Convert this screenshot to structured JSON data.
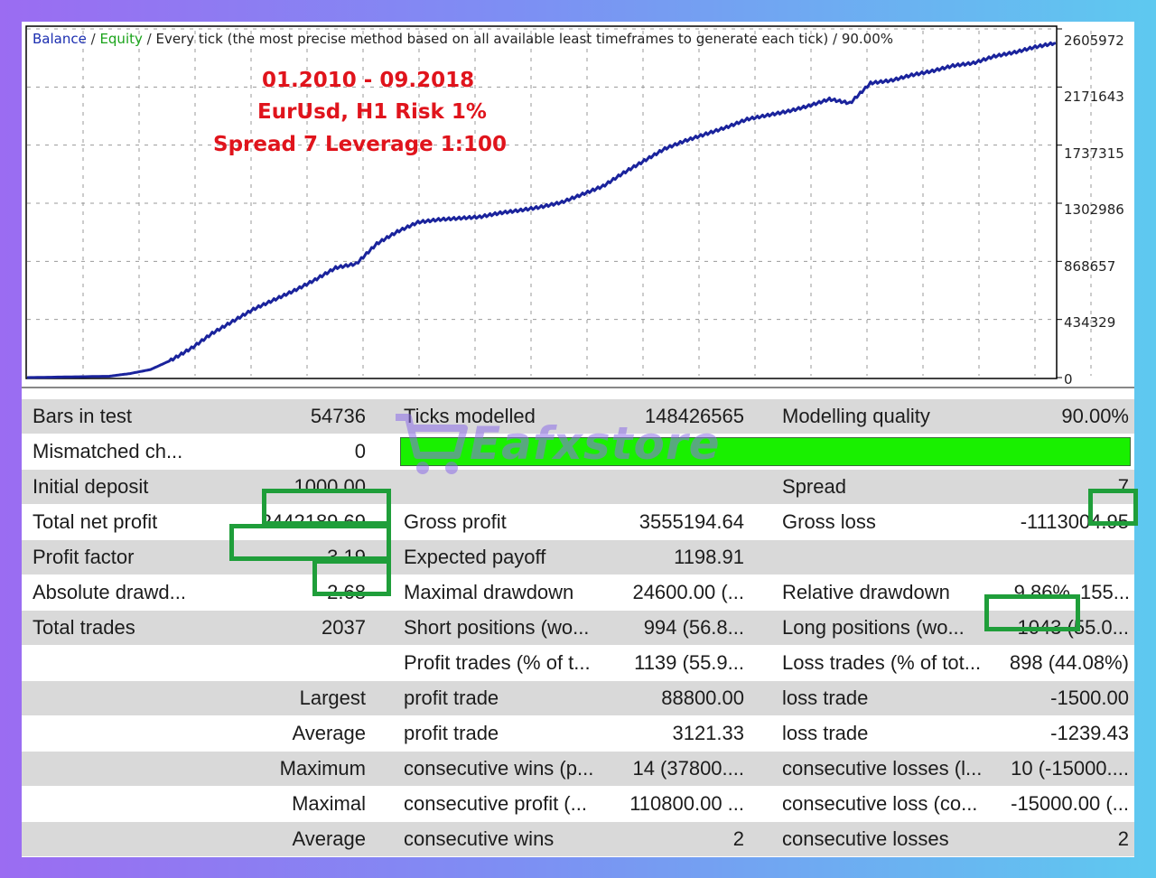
{
  "chart": {
    "legend": {
      "balance": "Balance",
      "equity": "Equity",
      "description": "Every tick (the most precise method based on all available least timeframes to generate each tick) / 90.00%"
    },
    "annotations": [
      "01.2010 - 09.2018",
      "EurUsd, H1  Risk 1%",
      "Spread 7    Leverage 1:100"
    ],
    "y_ticks": [
      "2605972",
      "2171643",
      "1737315",
      "1302986",
      "868657",
      "434329",
      "0"
    ],
    "colors": {
      "balance": "#1a239c",
      "equity": "#1aa31a",
      "annotation": "#e0141c",
      "highlight": "#1f9e3a",
      "quality_bar": "#19f000"
    }
  },
  "chart_data": {
    "type": "line",
    "title": "",
    "xlabel": "",
    "ylabel": "",
    "ylim": [
      0,
      2605972
    ],
    "x": [
      0,
      4,
      8,
      10,
      12,
      14,
      16,
      18,
      20,
      22,
      24,
      26,
      28,
      30,
      32,
      34,
      36,
      38,
      40,
      42,
      44,
      46,
      48,
      50,
      52,
      54,
      56,
      58,
      60,
      62,
      64,
      66,
      68,
      70,
      72,
      74,
      76,
      78,
      80,
      82,
      84,
      86,
      88,
      90,
      92,
      94,
      96,
      98,
      100
    ],
    "series": [
      {
        "name": "Balance",
        "values": [
          0,
          5000,
          10000,
          30000,
          60000,
          130000,
          220000,
          330000,
          420000,
          510000,
          580000,
          650000,
          730000,
          820000,
          850000,
          1000000,
          1090000,
          1160000,
          1180000,
          1190000,
          1200000,
          1230000,
          1250000,
          1275000,
          1310000,
          1370000,
          1430000,
          1530000,
          1620000,
          1710000,
          1770000,
          1820000,
          1870000,
          1930000,
          1960000,
          1990000,
          2030000,
          2080000,
          2050000,
          2200000,
          2220000,
          2260000,
          2290000,
          2330000,
          2350000,
          2400000,
          2430000,
          2470000,
          2500000
        ]
      }
    ]
  },
  "stats": {
    "rows": [
      {
        "c": [
          "Bars in test",
          "54736",
          "Ticks modelled",
          "148426565",
          "Modelling quality",
          "90.00%"
        ]
      },
      {
        "c": [
          "Mismatched ch...",
          "0",
          "",
          "",
          "",
          ""
        ]
      },
      {
        "c": [
          "Initial deposit",
          "1000.00",
          "",
          "",
          "Spread",
          "7"
        ]
      },
      {
        "c": [
          "Total net profit",
          "2442189.69",
          "Gross profit",
          "3555194.64",
          "Gross loss",
          "-1113004.95"
        ]
      },
      {
        "c": [
          "Profit factor",
          "3.19",
          "Expected payoff",
          "1198.91",
          "",
          ""
        ]
      },
      {
        "c": [
          "Absolute drawd...",
          "2.68",
          "Maximal drawdown",
          "24600.00 (...",
          "Relative drawdown",
          "9.86%",
          "155..."
        ]
      },
      {
        "c": [
          "Total trades",
          "2037",
          "Short positions (wo...",
          "994 (56.8...",
          "Long positions (wo...",
          "1043 (55.0..."
        ]
      },
      {
        "c": [
          "",
          "",
          "Profit trades (% of t...",
          "1139 (55.9...",
          "Loss trades (% of tot...",
          "898 (44.08%)"
        ]
      },
      {
        "c": [
          "",
          "Largest",
          "profit trade",
          "88800.00",
          "loss trade",
          "-1500.00"
        ]
      },
      {
        "c": [
          "",
          "Average",
          "profit trade",
          "3121.33",
          "loss trade",
          "-1239.43"
        ]
      },
      {
        "c": [
          "",
          "Maximum",
          "consecutive wins (p...",
          "14 (37800....",
          "consecutive losses (l...",
          "10 (-15000...."
        ]
      },
      {
        "c": [
          "",
          "Maximal",
          "consecutive profit (...",
          "110800.00 ...",
          "consecutive loss (co...",
          "-15000.00 (..."
        ]
      },
      {
        "c": [
          "",
          "Average",
          "consecutive wins",
          "2",
          "consecutive losses",
          "2"
        ]
      }
    ]
  },
  "watermark": {
    "text": "Eafxstore"
  }
}
